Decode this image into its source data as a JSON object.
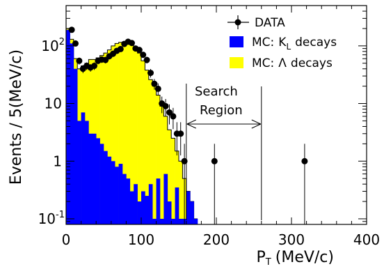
{
  "chart_data": {
    "type": "bar",
    "xlabel": "P",
    "xlabel_subscript": "T",
    "xlabel_unit": "(MeV/c)",
    "ylabel": "Events / 5(MeV/c)",
    "xlim": [
      0,
      400
    ],
    "ylim": [
      0.08,
      500
    ],
    "yscale": "log",
    "bin_width": 5,
    "x_ticks": [
      0,
      100,
      200,
      300,
      400
    ],
    "x_tick_labels": [
      "0",
      "100",
      "200",
      "300",
      "400"
    ],
    "y_ticks": [
      {
        "value": 0.1,
        "base": "10",
        "exp": "-1"
      },
      {
        "value": 1,
        "label": "1"
      },
      {
        "value": 10,
        "label": "10"
      },
      {
        "value": 100,
        "base": "10",
        "exp": "2"
      }
    ],
    "legend_position": "top-right",
    "series": [
      {
        "name_prefix": "MC",
        "name_main": "K",
        "name_sub": "L",
        "name_suffix": "decays",
        "color": "#0000ff",
        "type": "histogram",
        "x_start": 0,
        "values": [
          190,
          110,
          40,
          5,
          7,
          5,
          3,
          3,
          2.5,
          2,
          1.5,
          1.2,
          1,
          0.8,
          0.9,
          0.6,
          0.5,
          0.3,
          0.4,
          0.2,
          0.3,
          0.25,
          0.4,
          0.1,
          0.5,
          0.1,
          0.6,
          0.2,
          0.1,
          0.35,
          0.1,
          0.1,
          0.3,
          0.2,
          0.1
        ]
      },
      {
        "name_prefix": "MC",
        "name_main": "Λ",
        "name_suffix": "decays",
        "color": "#ffff00",
        "type": "histogram",
        "x_start": 0,
        "values": [
          200,
          130,
          60,
          40,
          45,
          50,
          58,
          58,
          62,
          68,
          75,
          85,
          100,
          110,
          115,
          118,
          112,
          105,
          90,
          75,
          55,
          38,
          26,
          20,
          14,
          9,
          6,
          3.5,
          2.5,
          1.5,
          1,
          0.5,
          0.25,
          0.12
        ]
      },
      {
        "name": "DATA",
        "type": "points",
        "color": "#000000",
        "x": [
          7.5,
          12.5,
          17.5,
          22.5,
          27.5,
          32.5,
          37.5,
          42.5,
          47.5,
          52.5,
          57.5,
          62.5,
          67.5,
          72.5,
          77.5,
          82.5,
          87.5,
          92.5,
          97.5,
          102.5,
          107.5,
          112.5,
          117.5,
          122.5,
          127.5,
          132.5,
          137.5,
          142.5,
          147.5,
          152.5,
          157.5,
          197.5,
          317.5
        ],
        "y": [
          190,
          110,
          55,
          40,
          45,
          42,
          45,
          55,
          58,
          57,
          66,
          73,
          82,
          88,
          108,
          118,
          112,
          90,
          85,
          70,
          57,
          34,
          22,
          18,
          10,
          9,
          7,
          6,
          3,
          3,
          1,
          1,
          1
        ],
        "yerr_rel": [
          0.07,
          0.1,
          0.14,
          0.16,
          0.15,
          0.15,
          0.15,
          0.13,
          0.13,
          0.13,
          0.12,
          0.12,
          0.11,
          0.11,
          0.1,
          0.09,
          0.09,
          0.11,
          0.11,
          0.12,
          0.13,
          0.17,
          0.21,
          0.24,
          0.32,
          0.33,
          0.38,
          0.4,
          0.58,
          0.58,
          1.0,
          1.0,
          1.0
        ]
      }
    ],
    "annotation": {
      "line1": "Search",
      "line2": "Region",
      "x_range": [
        160,
        260
      ]
    }
  },
  "legend_sep": ":"
}
